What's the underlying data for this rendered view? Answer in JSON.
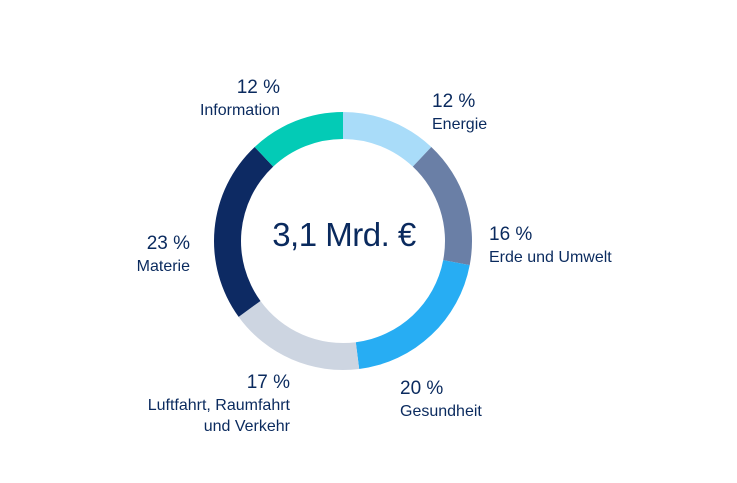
{
  "chart_data": {
    "type": "pie",
    "variant": "donut",
    "center_label": "3,1 Mrd. €",
    "slices": [
      {
        "label": "Energie",
        "percent_label": "12 %",
        "value": 12,
        "color": "#a9dcf9"
      },
      {
        "label": "Erde und Umwelt",
        "percent_label": "16 %",
        "value": 16,
        "color": "#6a7fa6"
      },
      {
        "label": "Gesundheit",
        "percent_label": "20 %",
        "value": 20,
        "color": "#27adf3"
      },
      {
        "label": "Luftfahrt, Raumfahrt\nund Verkehr",
        "percent_label": "17 %",
        "value": 17,
        "color": "#cdd5e1"
      },
      {
        "label": "Materie",
        "percent_label": "23 %",
        "value": 23,
        "color": "#0d2a63"
      },
      {
        "label": "Information",
        "percent_label": "12 %",
        "value": 12,
        "color": "#03cbb6"
      }
    ]
  }
}
